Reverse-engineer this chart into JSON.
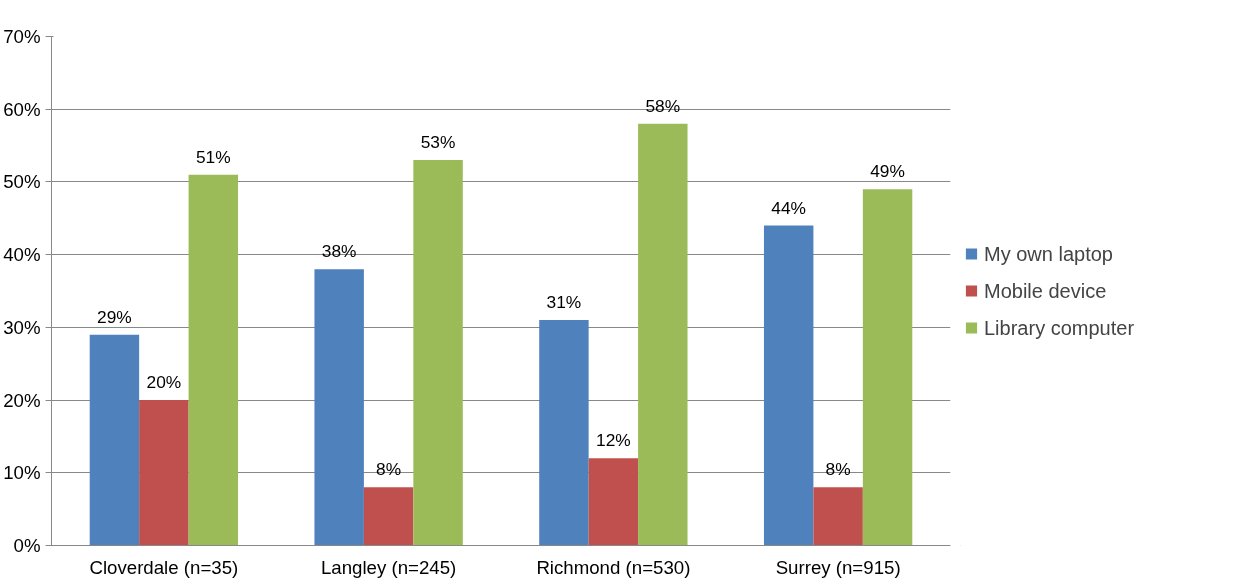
{
  "chart_data": {
    "type": "bar",
    "categories": [
      "Cloverdale (n=35)",
      "Langley (n=245)",
      "Richmond (n=530)",
      "Surrey (n=915)"
    ],
    "series": [
      {
        "name": "My own laptop",
        "color": "#4f81bd",
        "values": [
          29,
          38,
          31,
          44
        ],
        "value_labels": [
          "29%",
          "38%",
          "31%",
          "44%"
        ]
      },
      {
        "name": "Mobile device",
        "color": "#c0504d",
        "values": [
          20,
          8,
          12,
          8
        ],
        "value_labels": [
          "20%",
          "8%",
          "12%",
          "8%"
        ]
      },
      {
        "name": "Library computer",
        "color": "#9bbb59",
        "values": [
          51,
          53,
          58,
          49
        ],
        "value_labels": [
          "51%",
          "53%",
          "58%",
          "49%"
        ]
      }
    ],
    "ylim": [
      0,
      70
    ],
    "yticks": [
      {
        "value": 0,
        "label": "0%"
      },
      {
        "value": 10,
        "label": "10%"
      },
      {
        "value": 20,
        "label": "20%"
      },
      {
        "value": 30,
        "label": "30%"
      },
      {
        "value": 40,
        "label": "40%"
      },
      {
        "value": 50,
        "label": "50%"
      },
      {
        "value": 60,
        "label": "60%"
      },
      {
        "value": 70,
        "label": "70%"
      }
    ],
    "grid": "y",
    "legend": "right"
  }
}
